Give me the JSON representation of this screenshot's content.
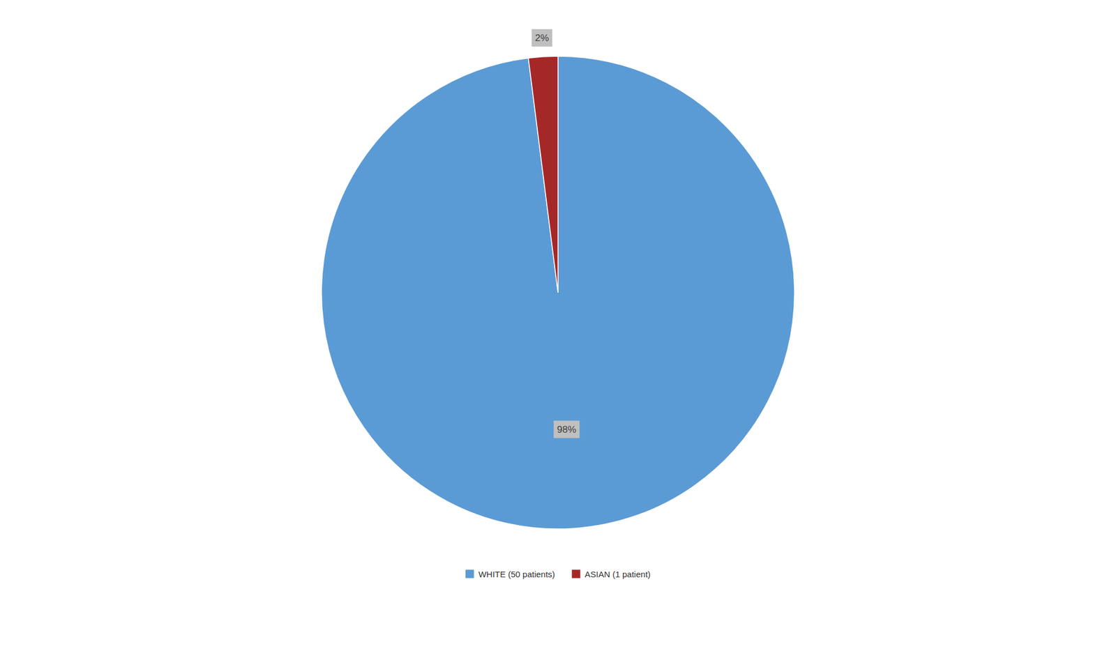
{
  "chart_data": {
    "type": "pie",
    "categories": [
      "WHITE (50 patients)",
      "ASIAN (1 patient)"
    ],
    "values": [
      98,
      2
    ],
    "value_labels": [
      "98%",
      "2%"
    ],
    "colors": [
      "#5b9bd5",
      "#a52828"
    ],
    "data_labels": true,
    "legend": "bottom"
  }
}
